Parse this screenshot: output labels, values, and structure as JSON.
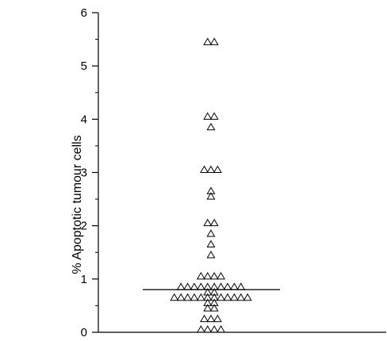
{
  "chart_data": {
    "type": "scatter",
    "title": "",
    "xlabel": "",
    "ylabel": "% Apoptotic tumour cells",
    "ylim": [
      0,
      6
    ],
    "yticks": [
      0,
      1,
      2,
      3,
      4,
      5,
      6
    ],
    "grid": false,
    "legend": "none",
    "marker": "triangle",
    "color": "#000000",
    "median": 0.8,
    "values": [
      5.4,
      5.4,
      4.0,
      4.0,
      3.8,
      3.0,
      3.0,
      3.0,
      2.6,
      2.5,
      2.0,
      2.0,
      1.8,
      1.6,
      1.4,
      1.0,
      1.0,
      1.0,
      1.0,
      0.8,
      0.8,
      0.8,
      0.8,
      0.8,
      0.8,
      0.8,
      0.8,
      0.8,
      0.8,
      0.7,
      0.7,
      0.6,
      0.6,
      0.6,
      0.6,
      0.6,
      0.6,
      0.6,
      0.6,
      0.6,
      0.6,
      0.6,
      0.6,
      0.5,
      0.5,
      0.4,
      0.4,
      0.2,
      0.2,
      0.2,
      0.0,
      0.0,
      0.0,
      0.0
    ]
  }
}
